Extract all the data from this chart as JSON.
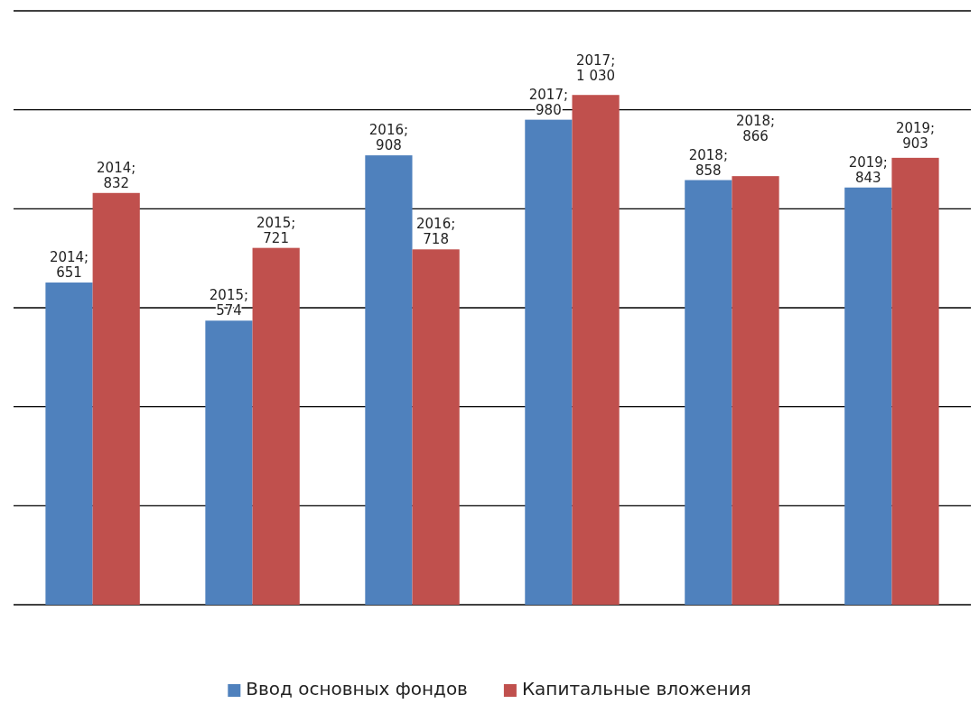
{
  "chart_data": {
    "type": "bar",
    "categories": [
      null,
      null,
      null,
      null,
      null,
      null
    ],
    "series": [
      {
        "name": "Ввод основных фондов",
        "color": "#4f81bd",
        "values": [
          651,
          574,
          908,
          980,
          858,
          843
        ],
        "value_labels": [
          "2014; 651",
          "2015; 574",
          "2016; 908",
          "2017; 980",
          "2018; 858",
          "2019; 843"
        ]
      },
      {
        "name": "Капитальные вложения",
        "color": "#c0504d",
        "values": [
          832,
          721,
          718,
          1030,
          866,
          903
        ],
        "value_labels": [
          "2014; 832",
          "2015; 721",
          "2016; 718",
          "2017; 1 030",
          "2018; 866",
          "2019; 903"
        ]
      }
    ],
    "ylim": [
      0,
      1200
    ],
    "yticks": [
      0,
      200,
      400,
      600,
      800,
      1000,
      1200
    ],
    "grid": "y",
    "tick_labels": false,
    "legend": "bottom"
  }
}
